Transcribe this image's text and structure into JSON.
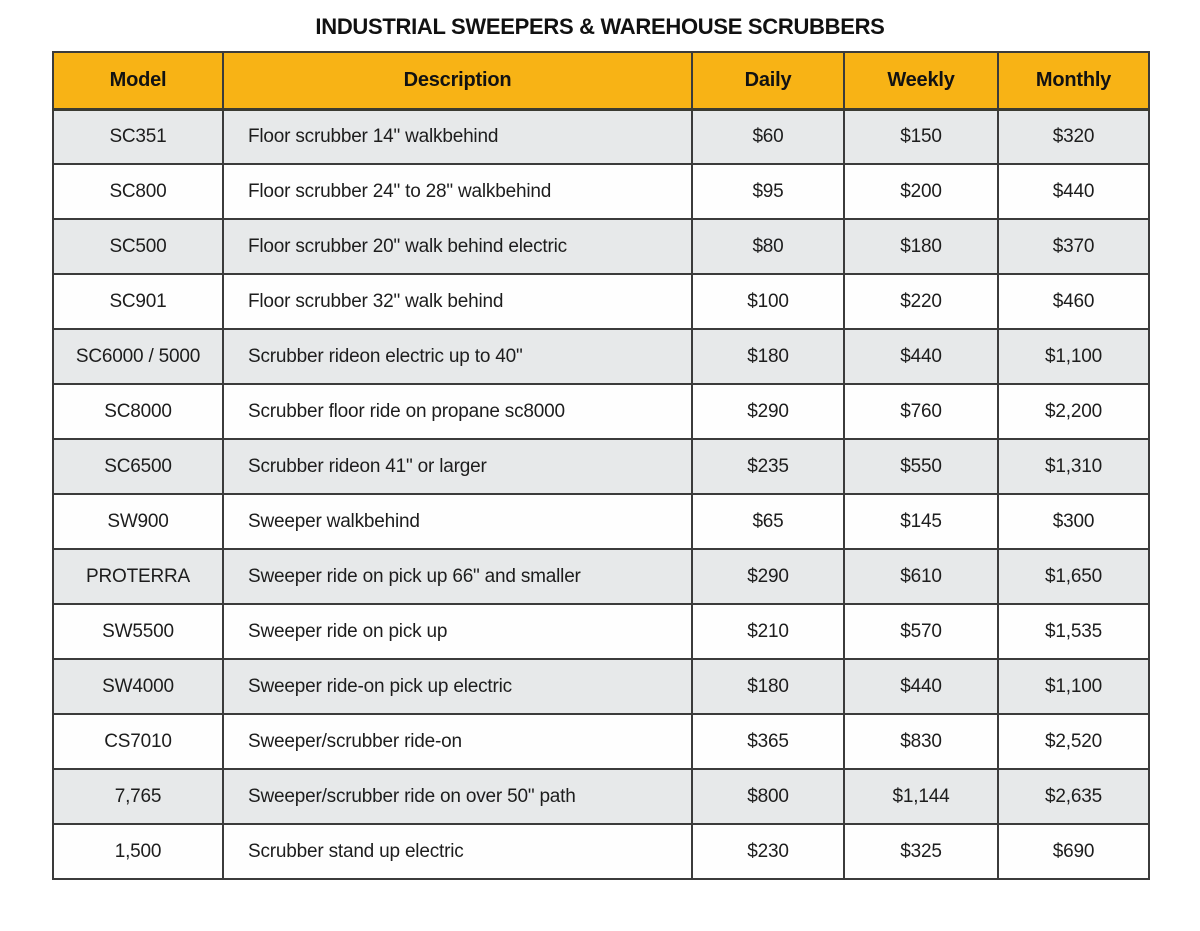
{
  "page_title": "INDUSTRIAL SWEEPERS & WAREHOUSE SCRUBBERS",
  "colors": {
    "header_bg": "#F8B315",
    "row_alt_bg": "#E7E9EA",
    "row_bg": "#FEFEFE",
    "border": "#3B3B3B",
    "text": "#1D1D1D"
  },
  "table": {
    "columns": [
      "Model",
      "Description",
      "Daily",
      "Weekly",
      "Monthly"
    ],
    "rows": [
      {
        "model": "SC351",
        "description": "Floor scrubber 14\" walkbehind",
        "daily": "$60",
        "weekly": "$150",
        "monthly": "$320"
      },
      {
        "model": "SC800",
        "description": "Floor scrubber 24\" to 28\" walkbehind",
        "daily": "$95",
        "weekly": "$200",
        "monthly": "$440"
      },
      {
        "model": "SC500",
        "description": "Floor scrubber 20\" walk behind electric",
        "daily": "$80",
        "weekly": "$180",
        "monthly": "$370"
      },
      {
        "model": "SC901",
        "description": "Floor scrubber 32\" walk behind",
        "daily": "$100",
        "weekly": "$220",
        "monthly": "$460"
      },
      {
        "model": "SC6000 / 5000",
        "description": "Scrubber rideon electric up to 40\"",
        "daily": "$180",
        "weekly": "$440",
        "monthly": "$1,100"
      },
      {
        "model": "SC8000",
        "description": "Scrubber floor ride on propane sc8000",
        "daily": "$290",
        "weekly": "$760",
        "monthly": "$2,200"
      },
      {
        "model": "SC6500",
        "description": "Scrubber rideon 41\" or larger",
        "daily": "$235",
        "weekly": "$550",
        "monthly": "$1,310"
      },
      {
        "model": "SW900",
        "description": "Sweeper walkbehind",
        "daily": "$65",
        "weekly": "$145",
        "monthly": "$300"
      },
      {
        "model": "PROTERRA",
        "description": "Sweeper ride on pick up 66\" and smaller",
        "daily": "$290",
        "weekly": "$610",
        "monthly": "$1,650"
      },
      {
        "model": "SW5500",
        "description": "Sweeper ride on pick up",
        "daily": "$210",
        "weekly": "$570",
        "monthly": "$1,535"
      },
      {
        "model": "SW4000",
        "description": "Sweeper ride-on pick up electric",
        "daily": "$180",
        "weekly": "$440",
        "monthly": "$1,100"
      },
      {
        "model": "CS7010",
        "description": "Sweeper/scrubber ride-on",
        "daily": "$365",
        "weekly": "$830",
        "monthly": "$2,520"
      },
      {
        "model": "7,765",
        "description": "Sweeper/scrubber ride on over 50\" path",
        "daily": "$800",
        "weekly": "$1,144",
        "monthly": "$2,635"
      },
      {
        "model": "1,500",
        "description": "Scrubber stand up electric",
        "daily": "$230",
        "weekly": "$325",
        "monthly": "$690"
      }
    ]
  },
  "chart_data": {
    "type": "table",
    "title": "INDUSTRIAL SWEEPERS & WAREHOUSE SCRUBBERS",
    "columns": [
      "Model",
      "Description",
      "Daily",
      "Weekly",
      "Monthly"
    ],
    "rows": [
      [
        "SC351",
        "Floor scrubber 14\" walkbehind",
        "$60",
        "$150",
        "$320"
      ],
      [
        "SC800",
        "Floor scrubber 24\" to 28\" walkbehind",
        "$95",
        "$200",
        "$440"
      ],
      [
        "SC500",
        "Floor scrubber 20\" walk behind electric",
        "$80",
        "$180",
        "$370"
      ],
      [
        "SC901",
        "Floor scrubber 32\" walk behind",
        "$100",
        "$220",
        "$460"
      ],
      [
        "SC6000 / 5000",
        "Scrubber rideon electric up to 40\"",
        "$180",
        "$440",
        "$1,100"
      ],
      [
        "SC8000",
        "Scrubber floor ride on propane sc8000",
        "$290",
        "$760",
        "$2,200"
      ],
      [
        "SC6500",
        "Scrubber rideon 41\" or larger",
        "$235",
        "$550",
        "$1,310"
      ],
      [
        "SW900",
        "Sweeper walkbehind",
        "$65",
        "$145",
        "$300"
      ],
      [
        "PROTERRA",
        "Sweeper ride on pick up 66\" and smaller",
        "$290",
        "$610",
        "$1,650"
      ],
      [
        "SW5500",
        "Sweeper ride on pick up",
        "$210",
        "$570",
        "$1,535"
      ],
      [
        "SW4000",
        "Sweeper ride-on pick up electric",
        "$180",
        "$440",
        "$1,100"
      ],
      [
        "CS7010",
        "Sweeper/scrubber ride-on",
        "$365",
        "$830",
        "$2,520"
      ],
      [
        "7,765",
        "Sweeper/scrubber ride on over 50\" path",
        "$800",
        "$1,144",
        "$2,635"
      ],
      [
        "1,500",
        "Scrubber stand up electric",
        "$230",
        "$325",
        "$690"
      ]
    ]
  }
}
